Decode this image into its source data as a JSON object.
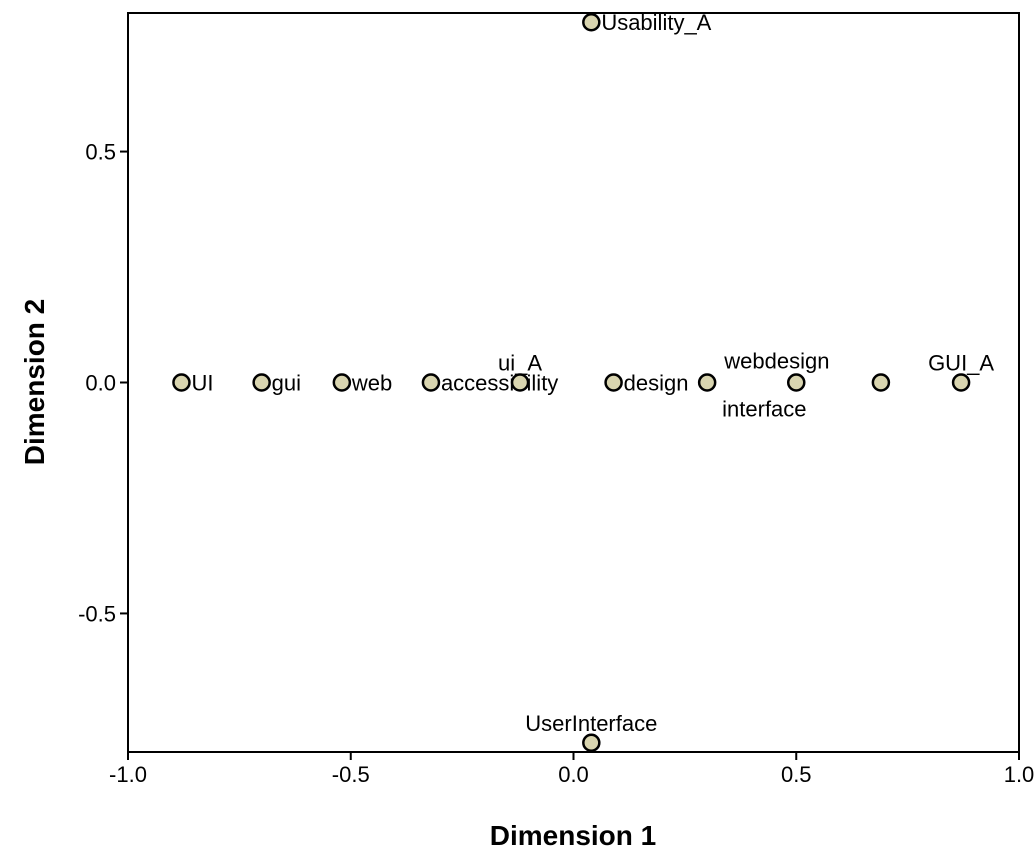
{
  "chart_data": {
    "type": "scatter",
    "title": "",
    "xlabel": "Dimension 1",
    "ylabel": "Dimension 2",
    "xlim": [
      -1.0,
      1.0
    ],
    "ylim": [
      -0.8,
      0.8
    ],
    "xticks": [
      -1.0,
      -0.5,
      0.0,
      0.5,
      1.0
    ],
    "xtick_labels": [
      "-1.0",
      "-0.5",
      "0.0",
      "0.5",
      "1.0"
    ],
    "yticks": [
      -0.5,
      0.0,
      0.5
    ],
    "ytick_labels": [
      "-0.5",
      "0.0",
      "0.5"
    ],
    "grid": false,
    "marker_color": "#d9d5b0",
    "points": [
      {
        "label": "Usability_A",
        "x": 0.04,
        "y": 0.78,
        "label_pos": "right"
      },
      {
        "label": "UI",
        "x": -0.88,
        "y": 0.0,
        "label_pos": "right"
      },
      {
        "label": "gui",
        "x": -0.7,
        "y": 0.0,
        "label_pos": "right"
      },
      {
        "label": "web",
        "x": -0.52,
        "y": 0.0,
        "label_pos": "right"
      },
      {
        "label": "accessibility",
        "x": -0.32,
        "y": 0.0,
        "label_pos": "right"
      },
      {
        "label": "ui_A",
        "x": -0.12,
        "y": 0.0,
        "label_pos": "above"
      },
      {
        "label": "design",
        "x": 0.09,
        "y": 0.0,
        "label_pos": "right"
      },
      {
        "label": "interface",
        "x": 0.3,
        "y": 0.0,
        "label_pos": "below-right"
      },
      {
        "label": "webdesign",
        "x": 0.5,
        "y": 0.0,
        "label_pos": "above-left"
      },
      {
        "label": "",
        "x": 0.69,
        "y": 0.0,
        "label_pos": "none"
      },
      {
        "label": "GUI_A",
        "x": 0.87,
        "y": 0.0,
        "label_pos": "above"
      },
      {
        "label": "UserInterface",
        "x": 0.04,
        "y": -0.78,
        "label_pos": "above"
      }
    ]
  }
}
